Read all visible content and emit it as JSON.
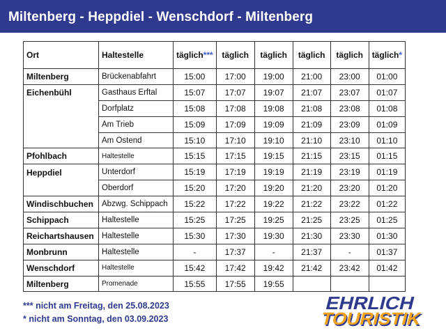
{
  "header": {
    "title": "Miltenberg - Heppdiel - Wenschdorf - Miltenberg"
  },
  "table": {
    "col_ort": "Ort",
    "col_halt": "Haltestelle",
    "time_headers": [
      {
        "label": "täglich",
        "mark": "***"
      },
      {
        "label": "täglich",
        "mark": ""
      },
      {
        "label": "täglich",
        "mark": ""
      },
      {
        "label": "täglich",
        "mark": ""
      },
      {
        "label": "täglich",
        "mark": ""
      },
      {
        "label": "täglich",
        "mark": "*"
      }
    ],
    "rows": [
      {
        "ort": "Miltenberg",
        "halt": "Brückenabfahrt",
        "times": [
          "15:00",
          "17:00",
          "19:00",
          "21:00",
          "23:00",
          "01:00"
        ]
      },
      {
        "ort": "Eichenbühl",
        "halt": "Gasthaus Erftal",
        "times": [
          "15:07",
          "17:07",
          "19:07",
          "21:07",
          "23:07",
          "01:07"
        ]
      },
      {
        "ort": "",
        "halt": "Dorfplatz",
        "times": [
          "15:08",
          "17:08",
          "19:08",
          "21:08",
          "23:08",
          "01:08"
        ]
      },
      {
        "ort": "",
        "halt": "Am Trieb",
        "times": [
          "15:09",
          "17:09",
          "19:09",
          "21:09",
          "23:09",
          "01:09"
        ]
      },
      {
        "ort": "",
        "halt": "Am Ostend",
        "times": [
          "15:10",
          "17:10",
          "19:10",
          "21:10",
          "23:10",
          "01:10"
        ]
      },
      {
        "ort": "Pfohlbach",
        "halt": "Haltestelle",
        "times": [
          "15:15",
          "17:15",
          "19:15",
          "21:15",
          "23:15",
          "01:15"
        ]
      },
      {
        "ort": "Heppdiel",
        "halt": "Unterdorf",
        "times": [
          "15:19",
          "17:19",
          "19:19",
          "21:19",
          "23:19",
          "01:19"
        ]
      },
      {
        "ort": "",
        "halt": "Oberdorf",
        "times": [
          "15:20",
          "17:20",
          "19:20",
          "21:20",
          "23:20",
          "01:20"
        ]
      },
      {
        "ort": "Windischbuchen",
        "halt": "Abzwg. Schippach",
        "times": [
          "15:22",
          "17:22",
          "19:22",
          "21:22",
          "23:22",
          "01:22"
        ]
      },
      {
        "ort": "Schippach",
        "halt": "Haltestelle",
        "times": [
          "15:25",
          "17:25",
          "19:25",
          "21:25",
          "23:25",
          "01:25"
        ]
      },
      {
        "ort": "Reichartshausen",
        "halt": "Haltestelle",
        "times": [
          "15:30",
          "17:30",
          "19:30",
          "21:30",
          "23:30",
          "01:30"
        ]
      },
      {
        "ort": "Monbrunn",
        "halt": "Haltestelle",
        "times": [
          "-",
          "17:37",
          "-",
          "21:37",
          "-",
          "01:37"
        ]
      },
      {
        "ort": "Wenschdorf",
        "halt": "Haltestelle",
        "times": [
          "15:42",
          "17:42",
          "19:42",
          "21:42",
          "23:42",
          "01:42"
        ]
      },
      {
        "ort": "Miltenberg",
        "halt": "Promenade",
        "times": [
          "15:55",
          "17:55",
          "19:55",
          "",
          "",
          ""
        ]
      }
    ]
  },
  "footnotes": {
    "note1": "*** nicht am Freitag, den 25.08.2023",
    "note2": "* nicht am Sonntag, den 03.09.2023"
  },
  "logo": {
    "line1": "EHRLICH",
    "line2": "TOURISTIK",
    "color_main": "#2f3a8f",
    "color_accent": "#f2a31b"
  }
}
